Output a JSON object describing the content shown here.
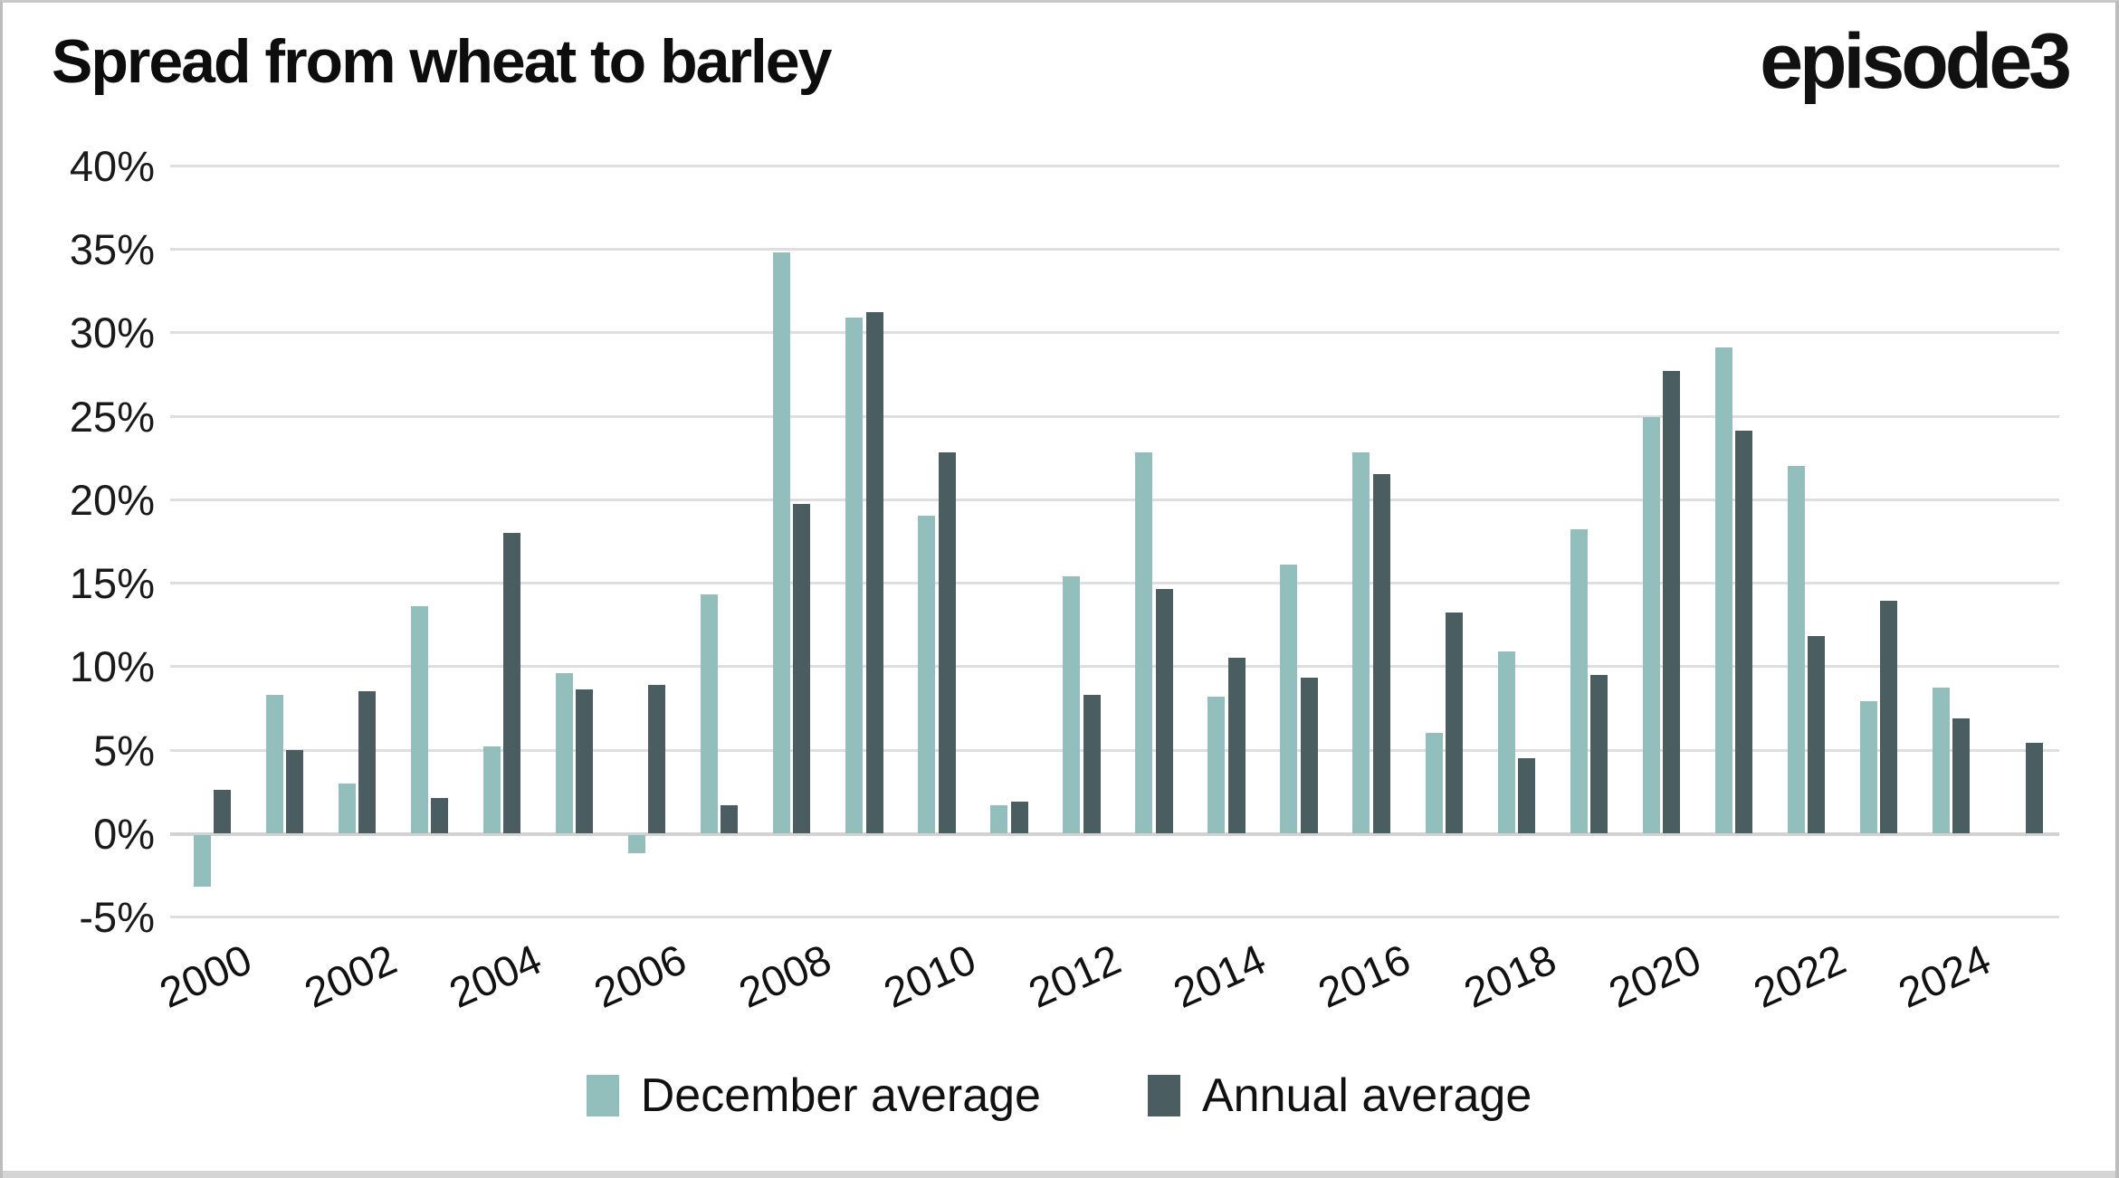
{
  "header": {
    "title": "Spread from wheat to barley",
    "logo": "episode3"
  },
  "colors": {
    "december": "#92bfbc",
    "annual": "#4a5e61",
    "gridline": "#dedede",
    "zero_line": "#d2d2d2",
    "text": "#111111"
  },
  "legend": {
    "items": [
      {
        "label": "December average",
        "color": "#92bfbc"
      },
      {
        "label": "Annual average",
        "color": "#4a5e61"
      }
    ]
  },
  "chart_data": {
    "type": "bar",
    "title": "Spread from wheat to barley",
    "categories": [
      2000,
      2001,
      2002,
      2003,
      2004,
      2005,
      2006,
      2007,
      2008,
      2009,
      2010,
      2011,
      2012,
      2013,
      2014,
      2015,
      2016,
      2017,
      2018,
      2019,
      2020,
      2021,
      2022,
      2023,
      2024,
      2025
    ],
    "series": [
      {
        "name": "December average",
        "color": "#92bfbc",
        "values": [
          -3.1,
          8.3,
          3.0,
          13.6,
          5.2,
          9.6,
          -1.1,
          14.3,
          34.8,
          30.9,
          19.0,
          1.7,
          15.4,
          22.8,
          8.2,
          16.1,
          22.8,
          6.0,
          10.9,
          18.2,
          24.9,
          29.1,
          22.0,
          7.9,
          8.7,
          null
        ]
      },
      {
        "name": "Annual average",
        "color": "#4a5e61",
        "values": [
          2.6,
          5.0,
          8.5,
          2.1,
          18.0,
          8.6,
          8.9,
          1.7,
          19.7,
          31.2,
          22.8,
          1.9,
          8.3,
          14.6,
          10.5,
          9.3,
          21.5,
          13.2,
          4.5,
          9.5,
          27.7,
          24.1,
          11.8,
          13.9,
          6.9,
          5.4
        ]
      }
    ],
    "xlabel": "",
    "ylabel": "",
    "ylim": [
      -5,
      40
    ],
    "ytick_step": 5,
    "ytick_labels": [
      "40%",
      "35%",
      "30%",
      "25%",
      "20%",
      "15%",
      "10%",
      "5%",
      "0%",
      "-5%"
    ],
    "xtick_labels": [
      "2000",
      "2002",
      "2004",
      "2006",
      "2008",
      "2010",
      "2012",
      "2014",
      "2016",
      "2018",
      "2020",
      "2022",
      "2024"
    ],
    "grid": true,
    "legend_position": "bottom"
  }
}
